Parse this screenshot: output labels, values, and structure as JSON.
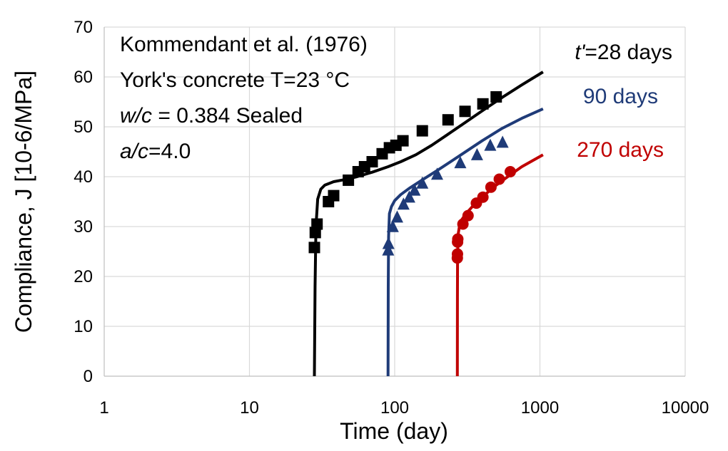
{
  "chart_data": {
    "type": "scatter",
    "xlabel": "Time (day)",
    "ylabel": "Compliance, J [10-6/MPa]",
    "x_scale": "log",
    "xlim": [
      1,
      10000
    ],
    "ylim": [
      0,
      70
    ],
    "x_ticks": [
      "1",
      "10",
      "100",
      "1000",
      "10000"
    ],
    "y_ticks": [
      "0",
      "10",
      "20",
      "30",
      "40",
      "50",
      "60",
      "70"
    ],
    "grid": true,
    "annotations": {
      "line1": "Kommendant et al. (1976)",
      "line2": "York's concrete   T=23 °C",
      "line3_italic": "w/c",
      "line3_rest": " = 0.384   Sealed",
      "line4_italic": "a/c",
      "line4_rest": "=4.0"
    },
    "series": [
      {
        "label_italic": "t'",
        "label_rest": "=28 days",
        "color": "#000000",
        "marker": "square",
        "points": [
          [
            28.0,
            25.8
          ],
          [
            28.4,
            28.8
          ],
          [
            29.2,
            30.5
          ],
          [
            35,
            35.0
          ],
          [
            38,
            36.2
          ],
          [
            48,
            39.3
          ],
          [
            56,
            41.0
          ],
          [
            62,
            42.0
          ],
          [
            70,
            43.0
          ],
          [
            82,
            44.6
          ],
          [
            92,
            45.8
          ],
          [
            102,
            46.3
          ],
          [
            114,
            47.2
          ],
          [
            155,
            49.2
          ],
          [
            233,
            51.4
          ],
          [
            305,
            53.1
          ],
          [
            405,
            54.6
          ],
          [
            500,
            56.0
          ]
        ],
        "curve": [
          [
            28,
            0
          ],
          [
            28.3,
            18
          ],
          [
            28.7,
            30
          ],
          [
            29.5,
            35.5
          ],
          [
            31,
            37.5
          ],
          [
            33,
            38.3
          ],
          [
            38,
            39.0
          ],
          [
            45,
            39.4
          ],
          [
            55,
            40.0
          ],
          [
            70,
            40.9
          ],
          [
            90,
            42.0
          ],
          [
            110,
            43.0
          ],
          [
            140,
            44.4
          ],
          [
            180,
            46.3
          ],
          [
            230,
            48.4
          ],
          [
            300,
            50.7
          ],
          [
            400,
            53.2
          ],
          [
            550,
            55.9
          ],
          [
            750,
            58.4
          ],
          [
            1050,
            61.0
          ]
        ]
      },
      {
        "label_italic": "",
        "label_rest": "90 days",
        "color": "#1f3b78",
        "marker": "triangle",
        "points": [
          [
            90.2,
            25.2
          ],
          [
            90.6,
            26.5
          ],
          [
            97,
            29.9
          ],
          [
            104,
            31.8
          ],
          [
            115,
            34.4
          ],
          [
            126,
            35.8
          ],
          [
            137,
            37.2
          ],
          [
            155,
            38.6
          ],
          [
            196,
            40.4
          ],
          [
            283,
            42.7
          ],
          [
            369,
            44.3
          ],
          [
            455,
            46.2
          ],
          [
            553,
            46.8
          ]
        ],
        "curve": [
          [
            90,
            0
          ],
          [
            90.3,
            18
          ],
          [
            90.8,
            28
          ],
          [
            92,
            32.6
          ],
          [
            95,
            34.0
          ],
          [
            100,
            35.2
          ],
          [
            110,
            36.4
          ],
          [
            125,
            37.6
          ],
          [
            150,
            39.1
          ],
          [
            200,
            41.4
          ],
          [
            280,
            44.2
          ],
          [
            400,
            47.2
          ],
          [
            550,
            49.7
          ],
          [
            750,
            51.7
          ],
          [
            1050,
            53.6
          ]
        ]
      },
      {
        "label_italic": "",
        "label_rest": "270 days",
        "color": "#c00000",
        "marker": "circle",
        "points": [
          [
            270,
            23.7
          ],
          [
            270.5,
            24.5
          ],
          [
            271,
            26.9
          ],
          [
            272,
            27.5
          ],
          [
            295,
            30.5
          ],
          [
            320,
            32.2
          ],
          [
            365,
            34.7
          ],
          [
            405,
            35.9
          ],
          [
            460,
            37.9
          ],
          [
            525,
            39.5
          ],
          [
            625,
            41.0
          ]
        ],
        "curve": [
          [
            270,
            0
          ],
          [
            270.4,
            16
          ],
          [
            271,
            24
          ],
          [
            274,
            28.6
          ],
          [
            280,
            30.3
          ],
          [
            290,
            31.4
          ],
          [
            310,
            32.6
          ],
          [
            340,
            33.9
          ],
          [
            380,
            35.3
          ],
          [
            430,
            36.7
          ],
          [
            500,
            38.3
          ],
          [
            600,
            40.0
          ],
          [
            750,
            42.0
          ],
          [
            1050,
            44.4
          ]
        ]
      }
    ]
  }
}
